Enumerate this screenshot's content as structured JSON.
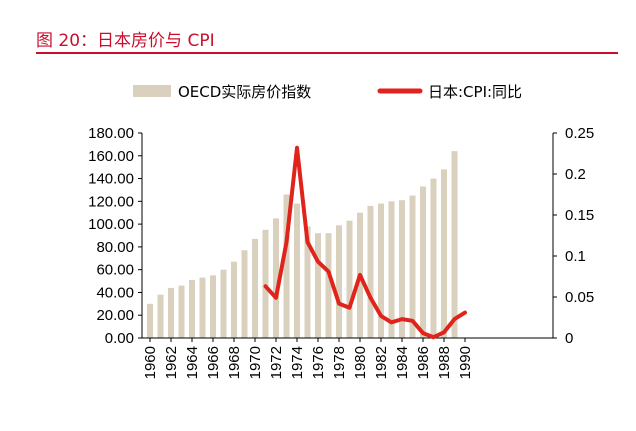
{
  "figure": {
    "number_label": "图 20：",
    "title": "日本房价与 CPI",
    "title_color": "#c8102e"
  },
  "chart_data": {
    "type": "bar",
    "title": "",
    "categories": [
      1960,
      1961,
      1962,
      1963,
      1964,
      1965,
      1966,
      1967,
      1968,
      1969,
      1970,
      1971,
      1972,
      1973,
      1974,
      1975,
      1976,
      1977,
      1978,
      1979,
      1980,
      1981,
      1982,
      1983,
      1984,
      1985,
      1986,
      1987,
      1988,
      1989,
      1990
    ],
    "x_tick_labels": [
      "1960",
      "1962",
      "1964",
      "1966",
      "1968",
      "1970",
      "1972",
      "1974",
      "1976",
      "1978",
      "1980",
      "1982",
      "1984",
      "1986",
      "1988",
      "1990"
    ],
    "series": [
      {
        "name": "OECD实际房价指数",
        "type": "bar",
        "axis": "left",
        "color": "#d9d0bd",
        "values": [
          30,
          38,
          44,
          46,
          51,
          53,
          55,
          60,
          67,
          77,
          87,
          95,
          105,
          126,
          118,
          98,
          92,
          92,
          99,
          103,
          110,
          116,
          118,
          120,
          121,
          125,
          133,
          140,
          148,
          164,
          null
        ]
      },
      {
        "name": "日本:CPI:同比",
        "type": "line",
        "axis": "right",
        "color": "#e0231b",
        "x": [
          1971,
          1972,
          1973,
          1974,
          1975,
          1976,
          1977,
          1978,
          1979,
          1980,
          1981,
          1982,
          1983,
          1984,
          1985,
          1986,
          1987,
          1988,
          1989,
          1990
        ],
        "values": [
          0.063,
          0.049,
          0.117,
          0.232,
          0.117,
          0.093,
          0.081,
          0.042,
          0.037,
          0.077,
          0.049,
          0.027,
          0.019,
          0.023,
          0.021,
          0.006,
          0.001,
          0.007,
          0.023,
          0.031
        ]
      }
    ],
    "left_axis": {
      "min": 0,
      "max": 180,
      "ticks": [
        "0.00",
        "20.00",
        "40.00",
        "60.00",
        "80.00",
        "100.00",
        "120.00",
        "140.00",
        "160.00",
        "180.00"
      ]
    },
    "right_axis": {
      "min": 0,
      "max": 0.25,
      "ticks": [
        "0",
        "0.05",
        "0.1",
        "0.15",
        "0.2",
        "0.25"
      ]
    },
    "legend_position": "top",
    "grid": false
  }
}
